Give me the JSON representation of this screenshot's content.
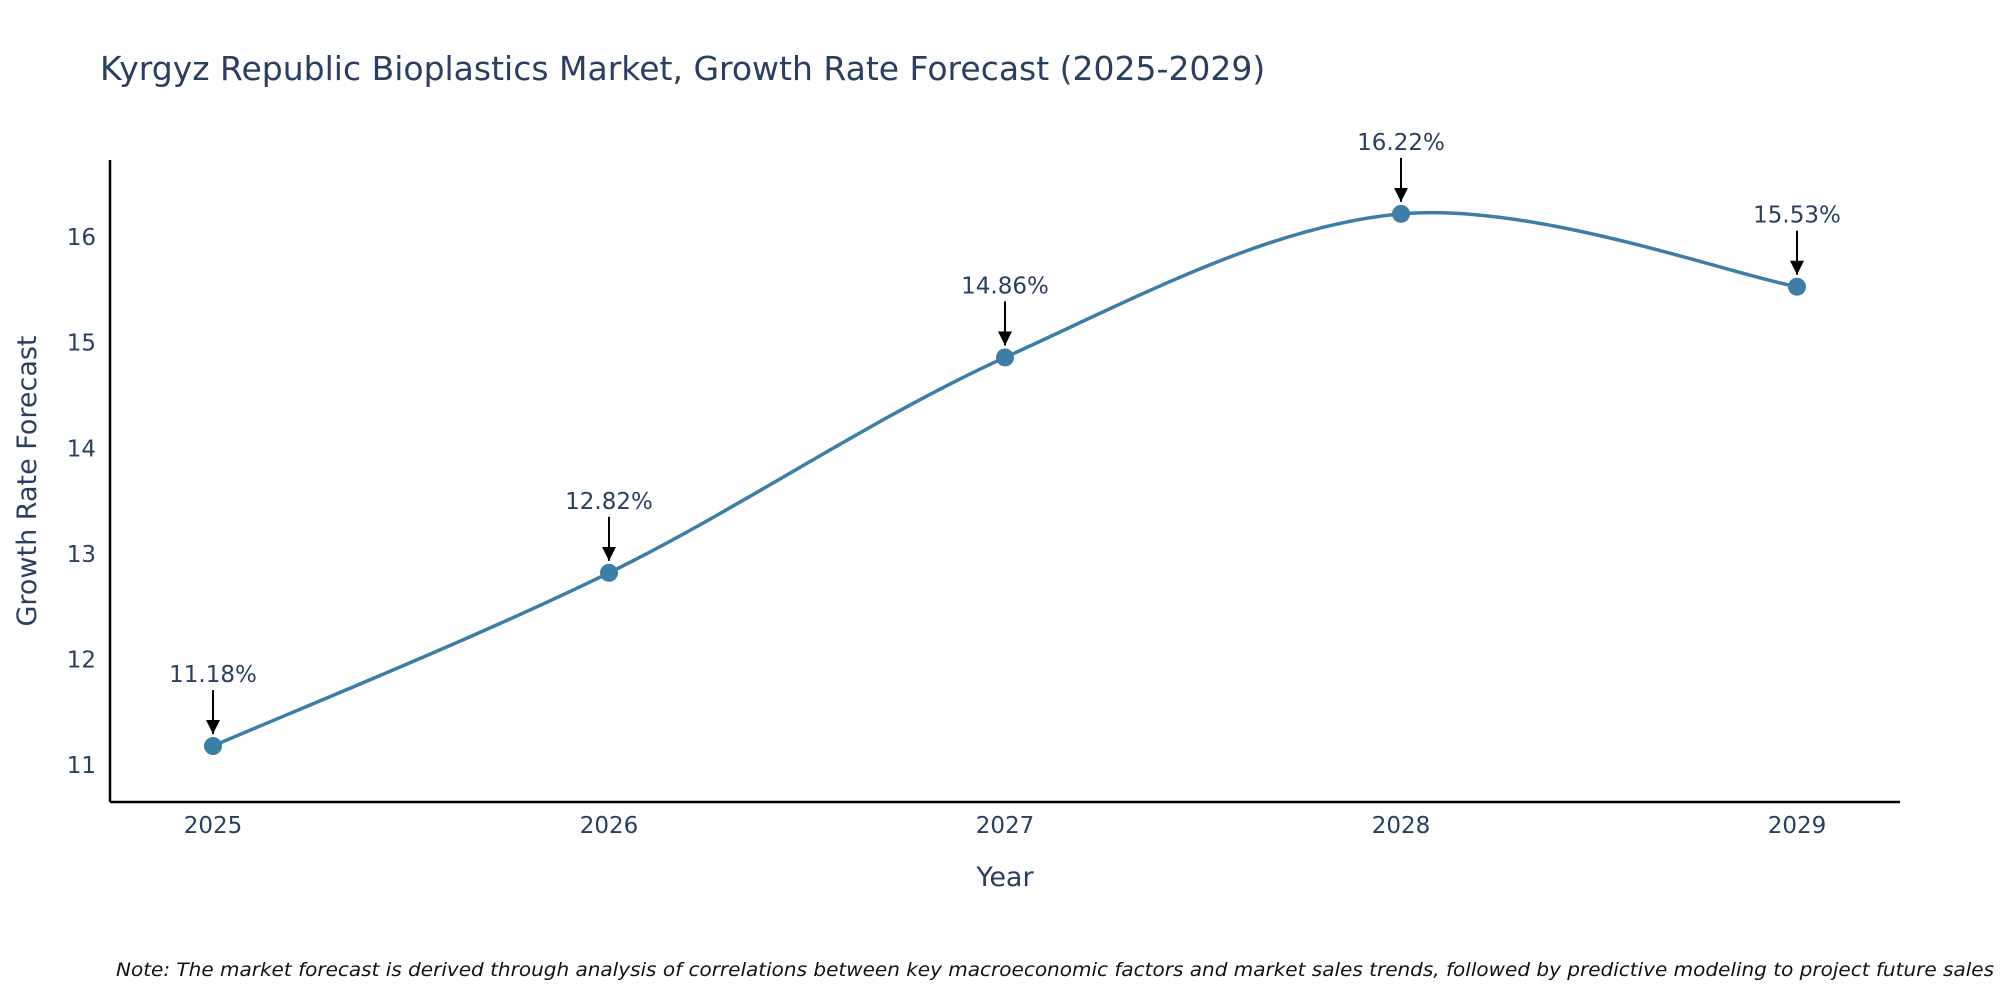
{
  "chart_data": {
    "type": "line",
    "title": "Kyrgyz Republic Bioplastics Market, Growth Rate Forecast (2025-2029)",
    "xlabel": "Year",
    "ylabel": "Growth Rate Forecast",
    "categories": [
      "2025",
      "2026",
      "2027",
      "2028",
      "2029"
    ],
    "values": [
      11.18,
      12.82,
      14.86,
      16.22,
      15.53
    ],
    "data_labels": [
      "11.18%",
      "12.82%",
      "14.86%",
      "16.22%",
      "15.53%"
    ],
    "y_ticks": [
      11,
      12,
      13,
      14,
      15,
      16
    ],
    "ylim": [
      10.65,
      16.73
    ],
    "line_shape": "spline",
    "grid": false,
    "series_color": "#3d7ea6",
    "note": "Note: The market forecast is derived through analysis of correlations between key macroeconomic factors and market sales trends, followed by predictive modeling to project future sales"
  }
}
